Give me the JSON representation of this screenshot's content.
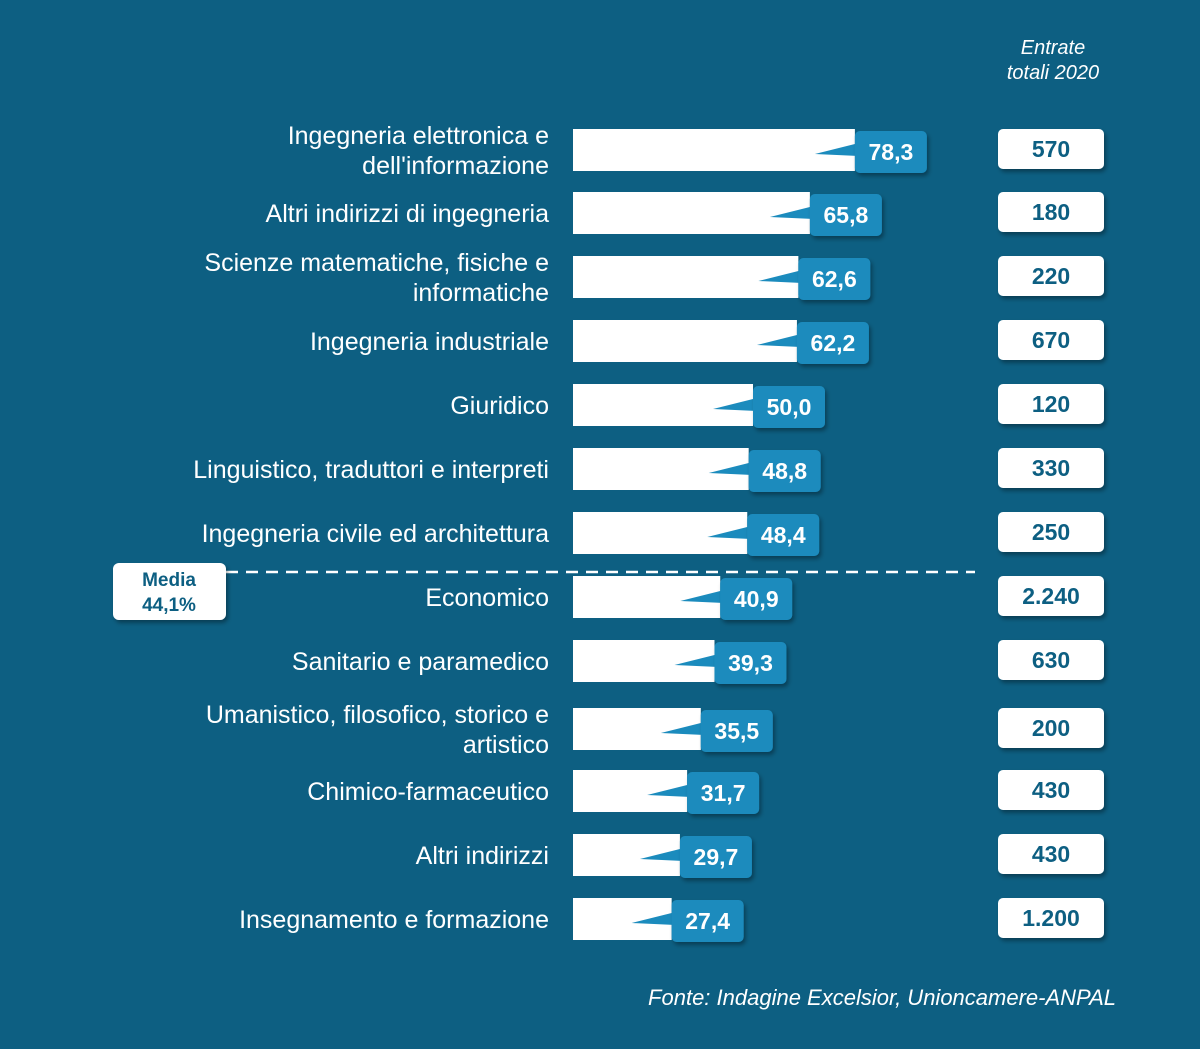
{
  "chart_data": {
    "type": "bar",
    "orientation": "horizontal",
    "categories": [
      "Ingegneria elettronica e\ndell'informazione",
      "Altri indirizzi di ingegneria",
      "Scienze matematiche, fisiche e\ninformatiche",
      "Ingegneria industriale",
      "Giuridico",
      "Linguistico, traduttori e interpreti",
      "Ingegneria civile ed architettura",
      "Economico",
      "Sanitario e paramedico",
      "Umanistico, filosofico, storico e\nartistico",
      "Chimico-farmaceutico",
      "Altri indirizzi",
      "Insegnamento e formazione"
    ],
    "values": [
      78.3,
      65.8,
      62.6,
      62.2,
      50.0,
      48.8,
      48.4,
      40.9,
      39.3,
      35.5,
      31.7,
      29.7,
      27.4
    ],
    "value_labels": [
      "78,3",
      "65,8",
      "62,6",
      "62,2",
      "50,0",
      "48,8",
      "48,4",
      "40,9",
      "39,3",
      "35,5",
      "31,7",
      "29,7",
      "27,4"
    ],
    "totals_header": "Entrate\ntotali 2020",
    "totals": [
      "570",
      "180",
      "220",
      "670",
      "120",
      "330",
      "250",
      "2.240",
      "630",
      "200",
      "430",
      "430",
      "1.200"
    ],
    "average": {
      "label": "Media",
      "value_label": "44,1%",
      "value": 44.1
    },
    "source": "Fonte: Indagine Excelsior, Unioncamere-ANPAL",
    "colors": {
      "background": "#0d5f82",
      "bar": "#ffffff",
      "value_badge": "#1b8bbd",
      "total_text": "#0d5f82"
    }
  }
}
